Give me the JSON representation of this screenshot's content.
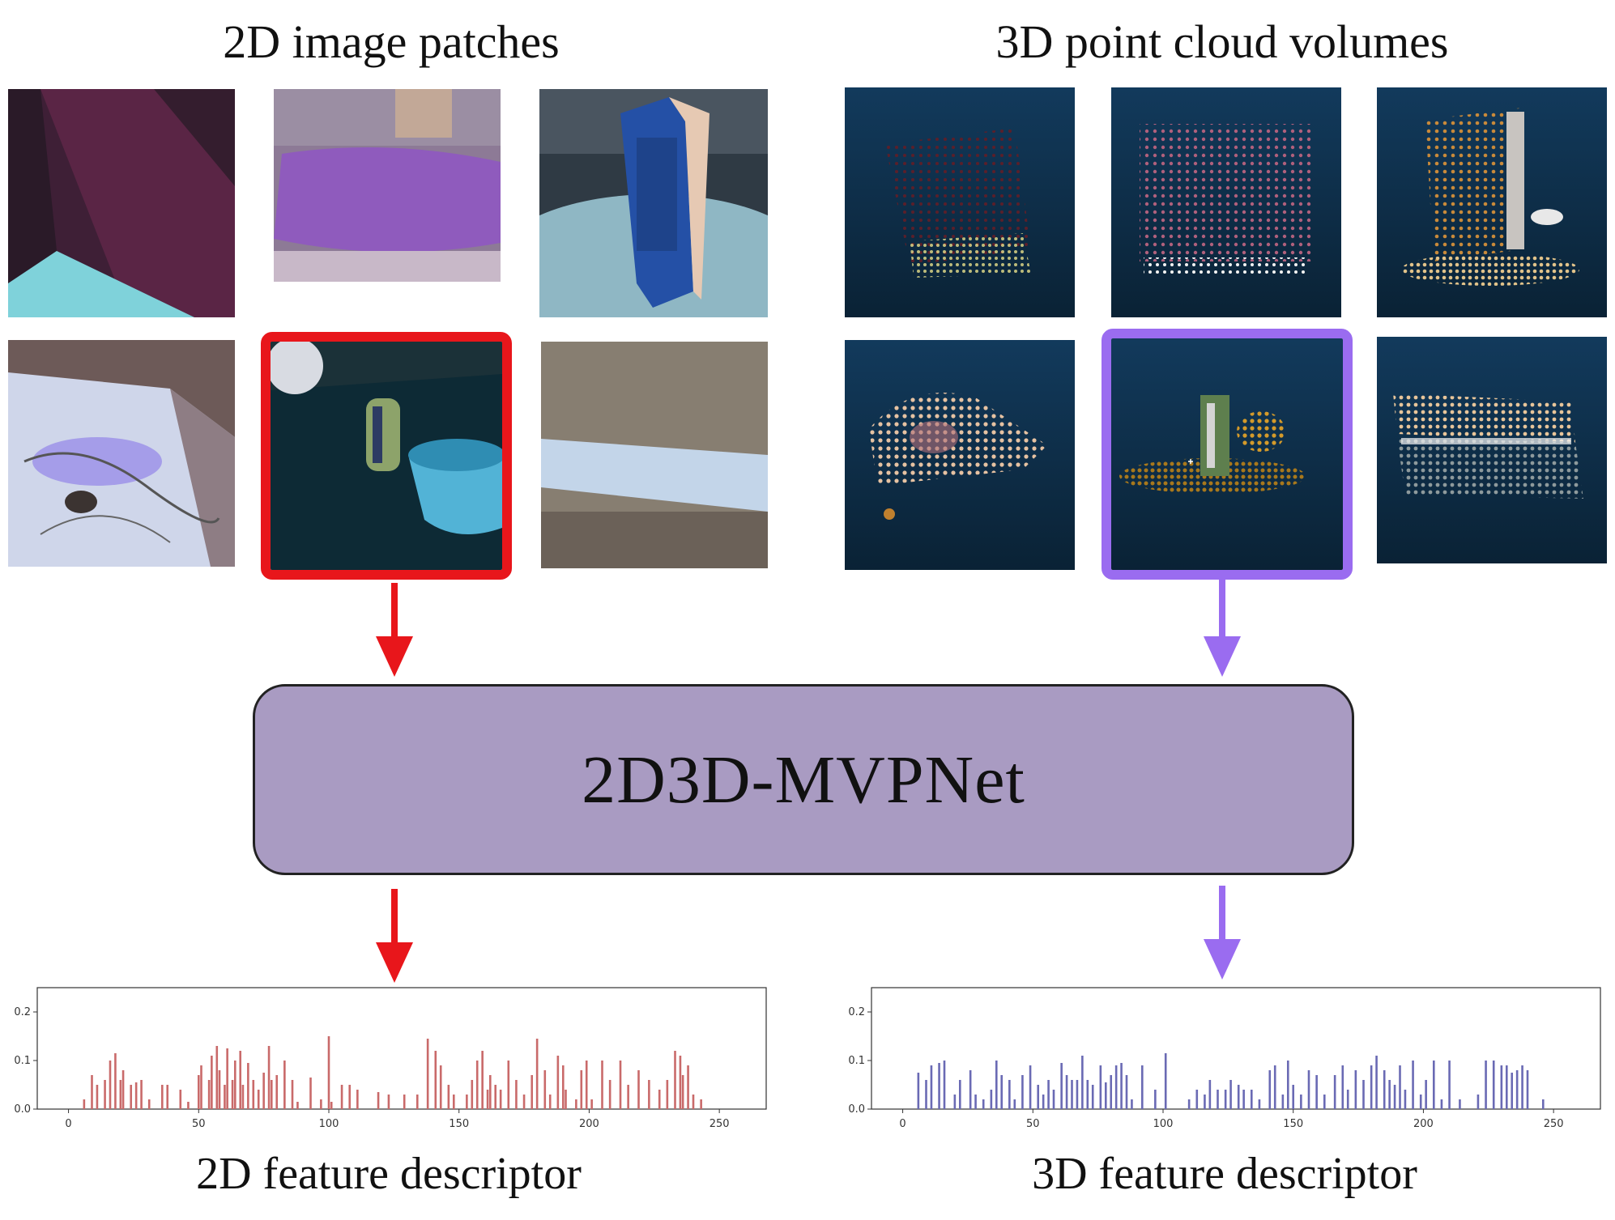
{
  "headings": {
    "left": "2D image patches",
    "right": "3D point cloud volumes"
  },
  "network": {
    "label": "2D3D-MVPNet"
  },
  "captions": {
    "left": "2D feature descriptor",
    "right": "3D feature descriptor"
  },
  "colors": {
    "highlight_2d": "#e8161b",
    "highlight_3d": "#9a6cf0",
    "network_fill": "#a99bc2",
    "bar_2d": "#c96a6a",
    "bar_3d": "#6a6ab4"
  },
  "chart_data": [
    {
      "type": "bar",
      "title": "",
      "xlabel": "",
      "ylabel": "",
      "xlim": [
        -12,
        268
      ],
      "ylim": [
        0,
        0.25
      ],
      "xticks": [
        0,
        50,
        100,
        150,
        200,
        250
      ],
      "yticks": [
        0.0,
        0.1,
        0.2
      ],
      "tick_labels_x": [
        "0",
        "50",
        "100",
        "150",
        "200",
        "250"
      ],
      "tick_labels_y": [
        "0.0",
        "0.1",
        "0.2"
      ],
      "grid": false,
      "x": [
        6,
        9,
        11,
        14,
        16,
        18,
        20,
        21,
        24,
        26,
        28,
        31,
        36,
        38,
        43,
        46,
        50,
        51,
        54,
        55,
        57,
        58,
        60,
        61,
        63,
        64,
        66,
        67,
        69,
        71,
        73,
        75,
        77,
        78,
        80,
        83,
        86,
        88,
        93,
        97,
        100,
        101,
        105,
        108,
        111,
        119,
        123,
        129,
        134,
        138,
        141,
        143,
        146,
        148,
        153,
        155,
        157,
        159,
        161,
        162,
        164,
        166,
        169,
        172,
        175,
        178,
        180,
        183,
        185,
        188,
        190,
        191,
        195,
        197,
        199,
        201,
        205,
        208,
        212,
        215,
        219,
        223,
        227,
        230,
        233,
        235,
        236,
        238,
        240,
        243
      ],
      "values": [
        0.02,
        0.07,
        0.05,
        0.06,
        0.1,
        0.115,
        0.06,
        0.08,
        0.05,
        0.055,
        0.06,
        0.02,
        0.05,
        0.05,
        0.04,
        0.015,
        0.07,
        0.09,
        0.06,
        0.11,
        0.13,
        0.08,
        0.05,
        0.125,
        0.06,
        0.1,
        0.12,
        0.05,
        0.095,
        0.06,
        0.04,
        0.075,
        0.13,
        0.06,
        0.07,
        0.1,
        0.06,
        0.015,
        0.065,
        0.02,
        0.15,
        0.015,
        0.05,
        0.05,
        0.04,
        0.035,
        0.03,
        0.03,
        0.03,
        0.145,
        0.12,
        0.09,
        0.05,
        0.03,
        0.03,
        0.06,
        0.1,
        0.12,
        0.04,
        0.07,
        0.05,
        0.04,
        0.1,
        0.06,
        0.03,
        0.07,
        0.145,
        0.08,
        0.03,
        0.11,
        0.09,
        0.04,
        0.02,
        0.08,
        0.1,
        0.02,
        0.1,
        0.06,
        0.1,
        0.05,
        0.08,
        0.06,
        0.04,
        0.06,
        0.12,
        0.11,
        0.07,
        0.09,
        0.03,
        0.02
      ]
    },
    {
      "type": "bar",
      "title": "",
      "xlabel": "",
      "ylabel": "",
      "xlim": [
        -12,
        268
      ],
      "ylim": [
        0,
        0.25
      ],
      "xticks": [
        0,
        50,
        100,
        150,
        200,
        250
      ],
      "yticks": [
        0.0,
        0.1,
        0.2
      ],
      "tick_labels_x": [
        "0",
        "50",
        "100",
        "150",
        "200",
        "250"
      ],
      "tick_labels_y": [
        "0.0",
        "0.1",
        "0.2"
      ],
      "grid": false,
      "x": [
        6,
        9,
        11,
        14,
        16,
        20,
        22,
        26,
        28,
        31,
        34,
        36,
        38,
        41,
        43,
        46,
        49,
        52,
        54,
        56,
        58,
        61,
        63,
        65,
        67,
        69,
        71,
        73,
        76,
        78,
        80,
        82,
        84,
        86,
        88,
        92,
        97,
        101,
        110,
        113,
        116,
        118,
        121,
        124,
        126,
        129,
        131,
        134,
        137,
        141,
        143,
        146,
        148,
        150,
        153,
        156,
        159,
        162,
        166,
        169,
        171,
        174,
        177,
        180,
        182,
        185,
        187,
        189,
        191,
        193,
        196,
        199,
        201,
        204,
        207,
        210,
        214,
        221,
        224,
        227,
        230,
        232,
        234,
        236,
        238,
        240,
        246
      ],
      "values": [
        0.075,
        0.06,
        0.09,
        0.095,
        0.1,
        0.03,
        0.06,
        0.08,
        0.03,
        0.02,
        0.04,
        0.1,
        0.07,
        0.06,
        0.02,
        0.07,
        0.09,
        0.05,
        0.03,
        0.06,
        0.04,
        0.095,
        0.07,
        0.06,
        0.06,
        0.11,
        0.06,
        0.05,
        0.09,
        0.055,
        0.07,
        0.09,
        0.095,
        0.07,
        0.02,
        0.09,
        0.04,
        0.115,
        0.02,
        0.04,
        0.03,
        0.06,
        0.04,
        0.04,
        0.06,
        0.05,
        0.04,
        0.04,
        0.02,
        0.08,
        0.09,
        0.03,
        0.1,
        0.05,
        0.03,
        0.08,
        0.07,
        0.03,
        0.07,
        0.09,
        0.04,
        0.08,
        0.06,
        0.09,
        0.11,
        0.08,
        0.06,
        0.05,
        0.09,
        0.04,
        0.1,
        0.03,
        0.06,
        0.1,
        0.02,
        0.1,
        0.02,
        0.03,
        0.1,
        0.1,
        0.09,
        0.09,
        0.075,
        0.08,
        0.09,
        0.08,
        0.02
      ]
    }
  ]
}
